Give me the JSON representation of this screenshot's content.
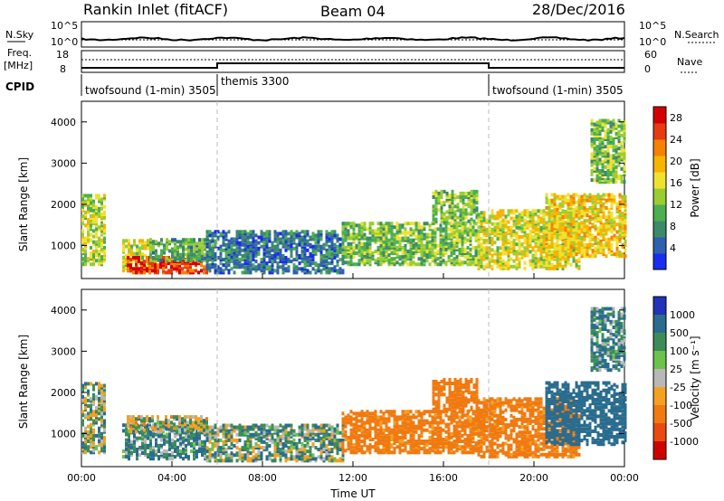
{
  "header": {
    "title": "Rankin Inlet (fitACF)",
    "beam": "Beam 04",
    "date": "28/Dec/2016"
  },
  "param_panels": {
    "nsky_label": "N.Sky",
    "nsearch_label": "N.Search",
    "noise_ticks": [
      "10^5",
      "10^0"
    ],
    "freq_label_1": "Freq.",
    "freq_label_2": "[MHz]",
    "freq_ticks": [
      "18",
      "8"
    ],
    "nave_label": "Nave",
    "nave_ticks": [
      "60",
      "0"
    ],
    "cpid_label": "CPID",
    "cpid_segments": [
      {
        "name": "twofsound (1-min) 3505",
        "start_h": 0,
        "end_h": 6
      },
      {
        "name": "themis 3300",
        "start_h": 6,
        "end_h": 18
      },
      {
        "name": "twofsound (1-min) 3505",
        "start_h": 18,
        "end_h": 24
      }
    ]
  },
  "x_axis": {
    "label": "Time UT",
    "ticks": [
      "00:00",
      "04:00",
      "08:00",
      "12:00",
      "16:00",
      "20:00",
      "00:00"
    ]
  },
  "colors": {
    "power": [
      "#1a2cf0",
      "#2f5fb0",
      "#3d8a6a",
      "#4caf50",
      "#9acd32",
      "#f0e130",
      "#f7b400",
      "#f58200",
      "#e83a10",
      "#d40000"
    ],
    "velocity": [
      "#2133b8",
      "#2a6c8e",
      "#3c8c5a",
      "#6cc24a",
      "#b8b8b8",
      "#f5a020",
      "#f07a10",
      "#e84a10",
      "#d10000"
    ]
  },
  "chart_data": [
    {
      "type": "heatmap",
      "name": "power",
      "xlabel": "",
      "ylabel": "Slant Range [km]",
      "xlim": [
        0,
        24
      ],
      "ylim": [
        200,
        4500
      ],
      "yticks": [
        1000,
        2000,
        3000,
        4000
      ],
      "colorbar_label": "Power [dB]",
      "colorbar_ticks": [
        4,
        8,
        12,
        16,
        20,
        24,
        28
      ],
      "colorbar_range": [
        0,
        30
      ],
      "regions": [
        {
          "t0": 0.0,
          "t1": 1.0,
          "r0": 500,
          "r1": 2200,
          "v": 14
        },
        {
          "t0": 1.8,
          "t1": 3.0,
          "r0": 350,
          "r1": 1100,
          "v": 16
        },
        {
          "t0": 2.0,
          "t1": 5.5,
          "r0": 300,
          "r1": 700,
          "v": 26
        },
        {
          "t0": 3.0,
          "t1": 5.8,
          "r0": 600,
          "r1": 1100,
          "v": 10
        },
        {
          "t0": 5.5,
          "t1": 11.5,
          "r0": 300,
          "r1": 1300,
          "v": 6
        },
        {
          "t0": 11.5,
          "t1": 17.5,
          "r0": 500,
          "r1": 1500,
          "v": 12
        },
        {
          "t0": 15.5,
          "t1": 17.5,
          "r0": 1500,
          "r1": 2300,
          "v": 12
        },
        {
          "t0": 17.5,
          "t1": 22.0,
          "r0": 400,
          "r1": 1800,
          "v": 16
        },
        {
          "t0": 20.5,
          "t1": 24.0,
          "r0": 700,
          "r1": 2200,
          "v": 18
        },
        {
          "t0": 22.5,
          "t1": 24.0,
          "r0": 2500,
          "r1": 4000,
          "v": 12
        }
      ]
    },
    {
      "type": "heatmap",
      "name": "velocity",
      "xlabel": "Time UT",
      "ylabel": "Slant Range [km]",
      "xlim": [
        0,
        24
      ],
      "ylim": [
        200,
        4500
      ],
      "yticks": [
        1000,
        2000,
        3000,
        4000
      ],
      "colorbar_label": "Velocity [m s⁻¹]",
      "colorbar_ticks": [
        1000,
        500,
        100,
        25,
        -25,
        -100,
        -500,
        -1000
      ],
      "regions": [
        {
          "t0": 0.0,
          "t1": 1.0,
          "r0": 500,
          "r1": 2200,
          "v": 25
        },
        {
          "t0": 1.8,
          "t1": 5.5,
          "r0": 350,
          "r1": 1200,
          "v": 100
        },
        {
          "t0": 2.0,
          "t1": 5.5,
          "r0": 1000,
          "r1": 1400,
          "v": 0
        },
        {
          "t0": 5.5,
          "t1": 11.5,
          "r0": 300,
          "r1": 1200,
          "v": 50
        },
        {
          "t0": 11.5,
          "t1": 17.5,
          "r0": 500,
          "r1": 1500,
          "v": -200
        },
        {
          "t0": 15.5,
          "t1": 17.5,
          "r0": 1500,
          "r1": 2300,
          "v": -300
        },
        {
          "t0": 17.5,
          "t1": 22.0,
          "r0": 400,
          "r1": 1800,
          "v": -200
        },
        {
          "t0": 20.5,
          "t1": 24.0,
          "r0": 700,
          "r1": 2200,
          "v": 300
        },
        {
          "t0": 22.5,
          "t1": 24.0,
          "r0": 2500,
          "r1": 4000,
          "v": 100
        }
      ]
    }
  ]
}
